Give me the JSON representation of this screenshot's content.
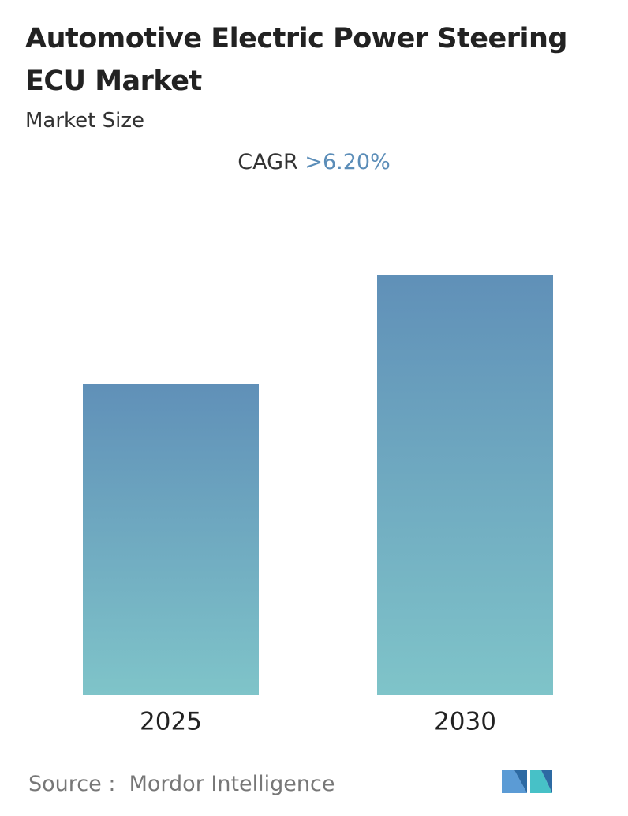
{
  "chart_data": {
    "type": "bar",
    "title": "Automotive Electric Power Steering ECU Market",
    "subtitle": "Market Size",
    "cagr_label": "CAGR",
    "cagr_value": ">6.20%",
    "categories": [
      "2025",
      "2030"
    ],
    "values": [
      74,
      100
    ],
    "color_top": "#6090b8",
    "color_bottom": "#7fc4c9",
    "source_label": "Source :",
    "source": "Mordor Intelligence"
  }
}
